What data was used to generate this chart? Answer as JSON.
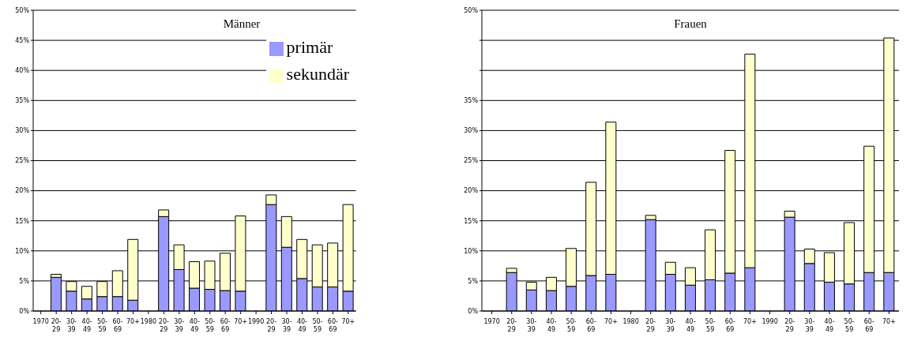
{
  "chart_data": [
    {
      "type": "bar",
      "title": "Männer",
      "stacked": true,
      "grid": "y",
      "legend": "top right",
      "categories": [
        "1970",
        "20-29",
        "30-39",
        "40-49",
        "50-59",
        "60-69",
        "70+",
        "1980",
        "20-29",
        "30-39",
        "40-49",
        "50-59",
        "60-69",
        "70+",
        "1990",
        "20-29",
        "30-39",
        "40-49",
        "50-59",
        "60-69",
        "70+"
      ],
      "series": [
        {
          "name": "primär",
          "color": "#9999ff",
          "values": [
            null,
            5.6,
            3.3,
            2.0,
            2.4,
            2.4,
            1.8,
            null,
            15.7,
            6.9,
            3.8,
            3.6,
            3.4,
            3.3,
            null,
            17.7,
            10.6,
            5.4,
            4.0,
            4.0,
            3.3
          ]
        },
        {
          "name": "sekundär",
          "color": "#ffffcc",
          "values": [
            null,
            0.5,
            1.6,
            2.1,
            2.5,
            4.3,
            10.1,
            null,
            1.1,
            4.1,
            4.4,
            4.7,
            6.2,
            12.5,
            null,
            1.6,
            5.1,
            6.5,
            7.0,
            7.3,
            14.4
          ]
        }
      ],
      "ylim": [
        0,
        50
      ],
      "yticks": [
        {
          "value": 0,
          "label": "0%"
        },
        {
          "value": 5,
          "label": "5%"
        },
        {
          "value": 10,
          "label": "10%"
        },
        {
          "value": 15,
          "label": "15%"
        },
        {
          "value": 20,
          "label": "20%"
        },
        {
          "value": 25,
          "label": "25%"
        },
        {
          "value": 30,
          "label": "30%"
        },
        {
          "value": 35,
          "label": "35%"
        },
        {
          "value": 40,
          "label": "40%"
        },
        {
          "value": 45,
          "label": "45%"
        },
        {
          "value": 50,
          "label": "50%"
        }
      ]
    },
    {
      "type": "bar",
      "title": "Frauen",
      "stacked": true,
      "grid": "y",
      "categories": [
        "1970",
        "20-29",
        "30-39",
        "40-49",
        "50-59",
        "60-69",
        "70+",
        "1980",
        "20-29",
        "30-39",
        "40-49",
        "50-59",
        "60-69",
        "70+",
        "1990",
        "20-29",
        "30-39",
        "40-49",
        "50-59",
        "60-69",
        "70+"
      ],
      "series": [
        {
          "color": "#9999ff",
          "values": [
            null,
            6.4,
            3.5,
            3.4,
            4.1,
            5.9,
            6.1,
            null,
            15.2,
            6.1,
            4.3,
            5.2,
            6.3,
            7.2,
            null,
            15.6,
            7.9,
            4.8,
            4.5,
            6.4,
            6.4
          ]
        },
        {
          "color": "#ffffcc",
          "values": [
            null,
            0.7,
            1.3,
            2.2,
            6.3,
            15.5,
            25.3,
            null,
            0.7,
            2.0,
            2.9,
            8.3,
            20.4,
            35.5,
            null,
            1.0,
            2.4,
            4.9,
            10.2,
            21.0,
            39.0
          ]
        }
      ],
      "ylim": [
        0,
        50
      ],
      "yticks": [
        {
          "value": 0,
          "label": "0%"
        },
        {
          "value": 5,
          "label": "5%"
        },
        {
          "value": 10,
          "label": "10%"
        },
        {
          "value": 15,
          "label": "15%"
        },
        {
          "value": 20,
          "label": "20%"
        },
        {
          "value": 25,
          "label": "25%"
        },
        {
          "value": 30,
          "label": "30%"
        },
        {
          "value": 35,
          "label": "35%"
        },
        {
          "value": 40,
          "label": null
        },
        {
          "value": 45,
          "label": null
        },
        {
          "value": 50,
          "label": "50%"
        }
      ]
    }
  ]
}
